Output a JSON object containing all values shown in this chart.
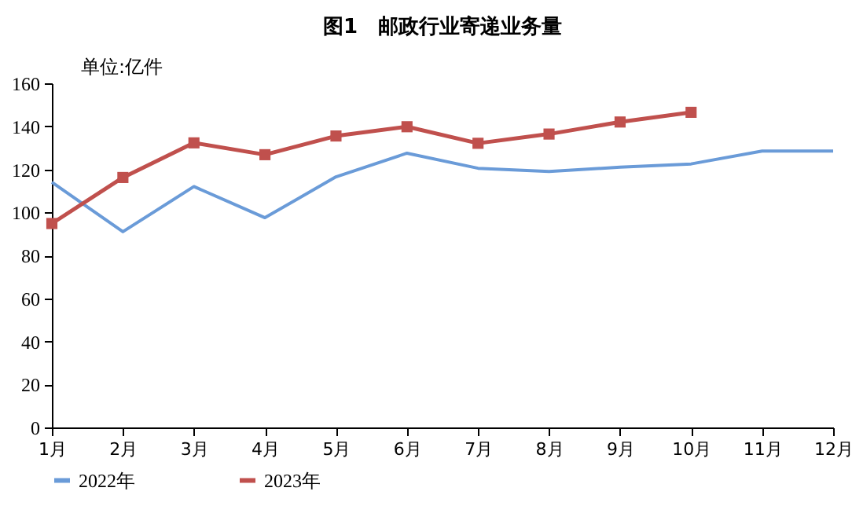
{
  "chart_data": {
    "type": "line",
    "title": "图1　邮政行业寄递业务量",
    "ylabel": "单位:亿件",
    "categories": [
      "1月",
      "2月",
      "3月",
      "4月",
      "5月",
      "6月",
      "7月",
      "8月",
      "9月",
      "10月",
      "11月",
      "12月"
    ],
    "series": [
      {
        "name": "2022年",
        "color": "#6a9bd8",
        "marker": "none",
        "values": [
          114,
          91,
          112,
          97.5,
          116.5,
          127.5,
          120.5,
          119,
          121,
          122.5,
          128.5,
          128.5
        ]
      },
      {
        "name": "2023年",
        "color": "#c0504d",
        "marker": "square",
        "values": [
          94.8,
          116.2,
          132.3,
          126.8,
          135.5,
          139.8,
          132.1,
          136.4,
          142,
          146.5,
          null,
          null
        ]
      }
    ],
    "ylim": [
      0,
      160
    ],
    "yticks": [
      0,
      20,
      40,
      60,
      80,
      100,
      120,
      140,
      160
    ],
    "grid": false,
    "legend": "bottom",
    "line_style": "solid"
  }
}
